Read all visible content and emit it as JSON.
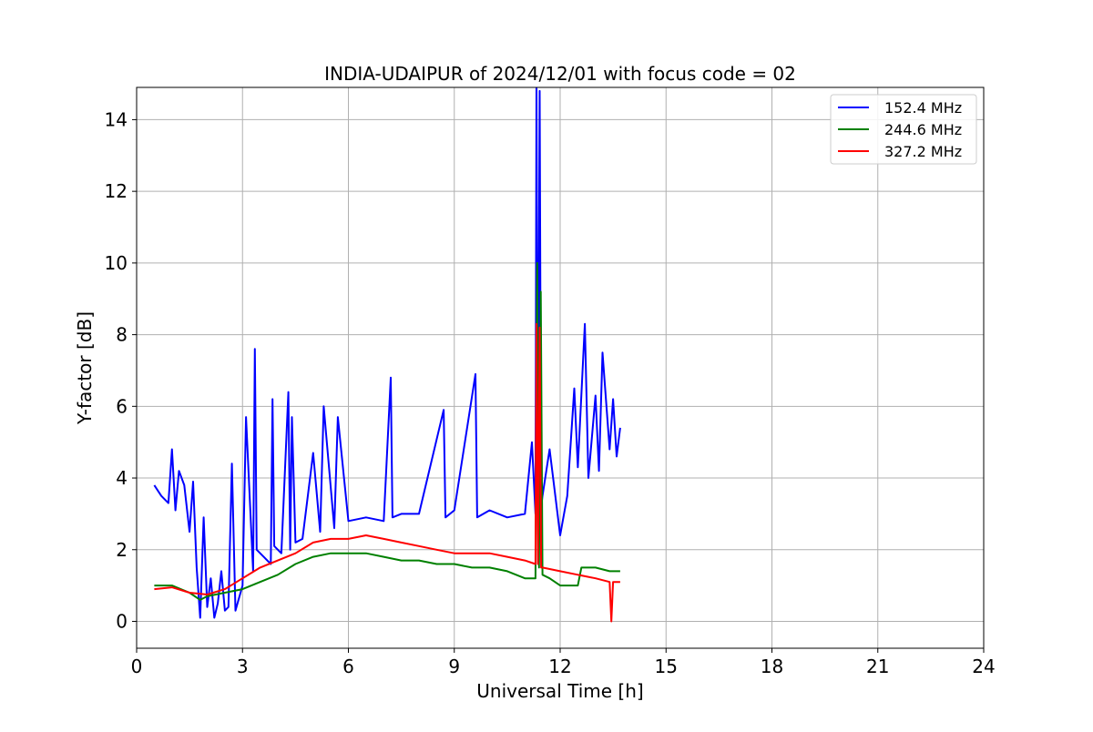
{
  "chart_data": {
    "type": "line",
    "title": "INDIA-UDAIPUR of 2024/12/01 with focus code = 02",
    "xlabel": "Universal Time [h]",
    "ylabel": "Y-factor [dB]",
    "xlim": [
      0,
      24
    ],
    "ylim": [
      -0.75,
      14.9
    ],
    "x_ticks": [
      "0",
      "3",
      "6",
      "9",
      "12",
      "15",
      "18",
      "21",
      "24"
    ],
    "y_ticks": [
      "0",
      "2",
      "4",
      "6",
      "8",
      "10",
      "12",
      "14"
    ],
    "grid": true,
    "legend_position": "top-right",
    "series": [
      {
        "name": "152.4 MHz",
        "color": "#0000ff",
        "x": [
          0.5,
          0.7,
          0.9,
          1.0,
          1.1,
          1.2,
          1.35,
          1.5,
          1.6,
          1.7,
          1.8,
          1.9,
          2.0,
          2.1,
          2.2,
          2.3,
          2.4,
          2.5,
          2.6,
          2.7,
          2.8,
          3.0,
          3.1,
          3.3,
          3.35,
          3.4,
          3.6,
          3.8,
          3.85,
          3.9,
          4.1,
          4.3,
          4.35,
          4.4,
          4.5,
          4.7,
          5.0,
          5.2,
          5.3,
          5.6,
          5.7,
          6.0,
          6.5,
          7.0,
          7.2,
          7.25,
          7.5,
          8.0,
          8.7,
          8.75,
          9.0,
          9.6,
          9.65,
          10.0,
          10.5,
          11.0,
          11.2,
          11.3,
          11.33,
          11.37,
          11.42,
          11.46,
          11.5,
          11.7,
          12.0,
          12.2,
          12.4,
          12.5,
          12.7,
          12.8,
          13.0,
          13.1,
          13.2,
          13.4,
          13.5,
          13.6,
          13.7
        ],
        "y": [
          3.8,
          3.5,
          3.3,
          4.8,
          3.1,
          4.2,
          3.8,
          2.5,
          3.9,
          1.5,
          0.1,
          2.9,
          0.4,
          1.2,
          0.1,
          0.5,
          1.4,
          0.3,
          0.4,
          4.4,
          0.3,
          1.0,
          5.7,
          1.4,
          7.6,
          2.0,
          1.8,
          1.6,
          6.2,
          2.1,
          1.9,
          6.4,
          2.0,
          5.7,
          2.2,
          2.3,
          4.7,
          2.5,
          6.0,
          2.6,
          5.7,
          2.8,
          2.9,
          2.8,
          6.8,
          2.9,
          3.0,
          3.0,
          5.9,
          2.9,
          3.1,
          6.9,
          2.9,
          3.1,
          2.9,
          3.0,
          5.0,
          3.0,
          15.2,
          3.4,
          14.8,
          3.2,
          3.5,
          4.8,
          2.4,
          3.5,
          6.5,
          4.3,
          8.3,
          4.0,
          6.3,
          4.2,
          7.5,
          4.8,
          6.2,
          4.6,
          5.4
        ]
      },
      {
        "name": "244.6 MHz",
        "color": "#008000",
        "x": [
          0.5,
          1.0,
          1.5,
          1.8,
          2.0,
          2.5,
          3.0,
          3.5,
          4.0,
          4.5,
          5.0,
          5.5,
          6.0,
          6.5,
          7.0,
          7.5,
          8.0,
          8.5,
          9.0,
          9.5,
          10.0,
          10.5,
          11.0,
          11.3,
          11.35,
          11.4,
          11.45,
          11.5,
          11.7,
          12.0,
          12.5,
          12.6,
          13.0,
          13.4,
          13.7
        ],
        "y": [
          1.0,
          1.0,
          0.8,
          0.6,
          0.7,
          0.8,
          0.9,
          1.1,
          1.3,
          1.6,
          1.8,
          1.9,
          1.9,
          1.9,
          1.8,
          1.7,
          1.7,
          1.6,
          1.6,
          1.5,
          1.5,
          1.4,
          1.2,
          1.2,
          10.0,
          1.5,
          9.2,
          1.3,
          1.2,
          1.0,
          1.0,
          1.5,
          1.5,
          1.4,
          1.4
        ]
      },
      {
        "name": "327.2 MHz",
        "color": "#ff0000",
        "x": [
          0.5,
          1.0,
          1.5,
          2.0,
          2.5,
          3.0,
          3.5,
          4.0,
          4.5,
          5.0,
          5.5,
          6.0,
          6.5,
          7.0,
          7.5,
          8.0,
          8.5,
          9.0,
          9.5,
          10.0,
          10.5,
          11.0,
          11.3,
          11.33,
          11.37,
          11.42,
          11.46,
          11.5,
          12.0,
          12.5,
          13.0,
          13.4,
          13.45,
          13.5,
          13.7
        ],
        "y": [
          0.9,
          0.95,
          0.8,
          0.75,
          0.9,
          1.2,
          1.5,
          1.7,
          1.9,
          2.2,
          2.3,
          2.3,
          2.4,
          2.3,
          2.2,
          2.1,
          2.0,
          1.9,
          1.9,
          1.9,
          1.8,
          1.7,
          1.6,
          8.3,
          1.6,
          8.2,
          1.5,
          1.5,
          1.4,
          1.3,
          1.2,
          1.1,
          0.0,
          1.1,
          1.1
        ]
      }
    ]
  }
}
